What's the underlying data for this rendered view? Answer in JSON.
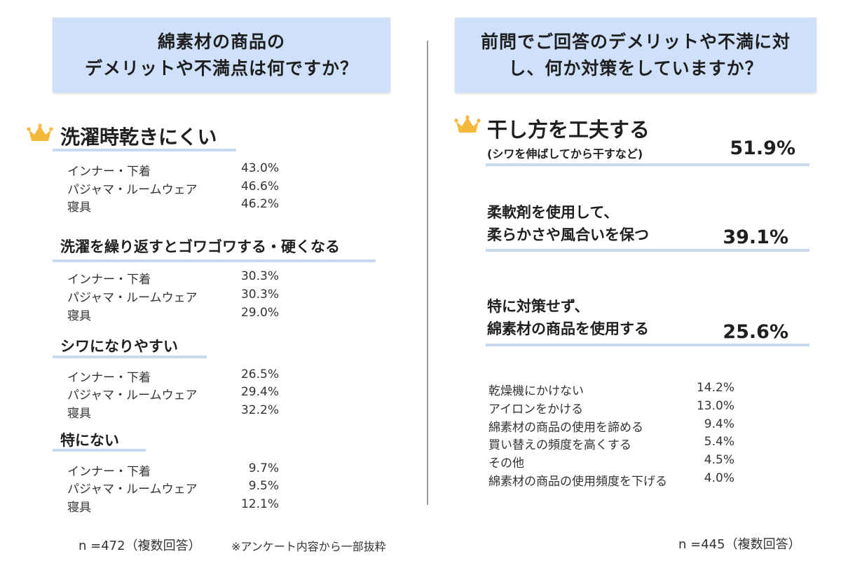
{
  "colors": {
    "header_bg": "#cfe0fb",
    "underline": "#c8d9f3",
    "crown": "#f5b93a",
    "divider": "#9a9a9a"
  },
  "left": {
    "title": "綿素材の商品の\nデメリットや不満点は何ですか？",
    "footnote_n": "n =472（複数回答）",
    "footnote_note": "※アンケート内容から一部抜粋"
  },
  "right": {
    "title": "前問でご回答のデメリットや不満に対\nし、何か対策をしていますか？",
    "footnote_n": "n =445（複数回答）"
  },
  "chart_data": [
    {
      "type": "table",
      "title": "綿素材の商品のデメリットや不満点は何ですか？",
      "groups": [
        {
          "label": "洗濯時乾きにくい",
          "rows": [
            {
              "label": "インナー・下着",
              "value_text": "43.0%",
              "value": 43.0
            },
            {
              "label": "パジャマ・ルームウェア",
              "value_text": "46.6%",
              "value": 46.6
            },
            {
              "label": "寝具",
              "value_text": "46.2%",
              "value": 46.2
            }
          ]
        },
        {
          "label": "洗濯を繰り返すとゴワゴワする・硬くなる",
          "rows": [
            {
              "label": "インナー・下着",
              "value_text": "30.3%",
              "value": 30.3
            },
            {
              "label": "パジャマ・ルームウェア",
              "value_text": "30.3%",
              "value": 30.3
            },
            {
              "label": "寝具",
              "value_text": "29.0%",
              "value": 29.0
            }
          ]
        },
        {
          "label": "シワになりやすい",
          "rows": [
            {
              "label": "インナー・下着",
              "value_text": "26.5%",
              "value": 26.5
            },
            {
              "label": "パジャマ・ルームウェア",
              "value_text": "29.4%",
              "value": 29.4
            },
            {
              "label": "寝具",
              "value_text": "32.2%",
              "value": 32.2
            }
          ]
        },
        {
          "label": "特にない",
          "rows": [
            {
              "label": "インナー・下着",
              "value_text": "9.7%",
              "value": 9.7
            },
            {
              "label": "パジャマ・ルームウェア",
              "value_text": "9.5%",
              "value": 9.5
            },
            {
              "label": "寝具",
              "value_text": "12.1%",
              "value": 12.1
            }
          ]
        }
      ]
    },
    {
      "type": "table",
      "title": "前問でご回答のデメリットや不満に対し、何か対策をしていますか？",
      "top_items": [
        {
          "label": "干し方を工夫する",
          "sublabel": "(シワを伸ばしてから干すなど)",
          "value_text": "51.9%",
          "value": 51.9
        },
        {
          "label": "柔軟剤を使用して、\n柔らかさや風合いを保つ",
          "value_text": "39.1%",
          "value": 39.1
        },
        {
          "label": "特に対策せず、\n綿素材の商品を使用する",
          "value_text": "25.6%",
          "value": 25.6
        }
      ],
      "other_items": [
        {
          "label": "乾燥機にかけない",
          "value_text": "14.2%",
          "value": 14.2
        },
        {
          "label": "アイロンをかける",
          "value_text": "13.0%",
          "value": 13.0
        },
        {
          "label": "綿素材の商品の使用を諦める",
          "value_text": "9.4%",
          "value": 9.4
        },
        {
          "label": "買い替えの頻度を高くする",
          "value_text": "5.4%",
          "value": 5.4
        },
        {
          "label": "その他",
          "value_text": "4.5%",
          "value": 4.5
        },
        {
          "label": "綿素材の商品の使用頻度を下げる",
          "value_text": "4.0%",
          "value": 4.0
        }
      ]
    }
  ]
}
